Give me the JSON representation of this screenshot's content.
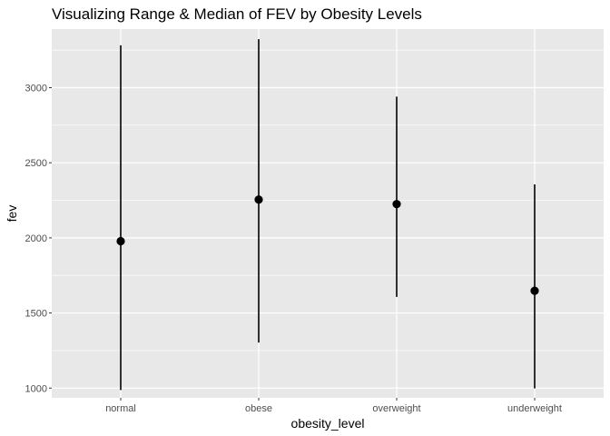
{
  "chart_data": {
    "type": "pointrange",
    "title": "Visualizing Range & Median of FEV by Obesity Levels",
    "xlabel": "obesity_level",
    "ylabel": "fev",
    "categories": [
      "normal",
      "obese",
      "overweight",
      "underweight"
    ],
    "median": [
      1978,
      2255,
      2225,
      1648
    ],
    "min": [
      987,
      1303,
      1607,
      998
    ],
    "max": [
      3282,
      3323,
      2940,
      2356
    ],
    "ylim": [
      935,
      3390
    ],
    "yticks": [
      1000,
      1500,
      2000,
      2500,
      3000
    ],
    "ytick_labels": [
      "1000",
      "1500",
      "2000",
      "2500",
      "3000"
    ],
    "grid": true,
    "colors": {
      "panel": "#e8e8e8",
      "grid": "#ffffff",
      "mark": "#000000"
    }
  }
}
